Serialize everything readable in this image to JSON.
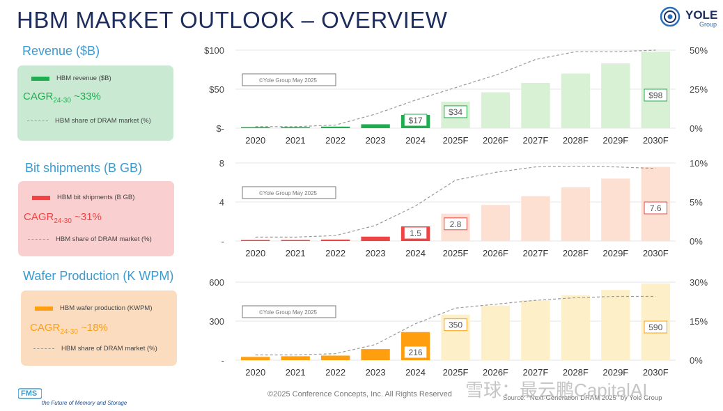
{
  "header": {
    "title": "HBM MARKET OUTLOOK – OVERVIEW",
    "logo_text": "YOLE",
    "logo_sub": "Group"
  },
  "colors": {
    "title": "#1c2d5e",
    "section_title": "#3a9bd1",
    "revenue_dark": "#1fae4f",
    "revenue_light": "#d8f0d4",
    "revenue_legend_bg": "#c9e9d2",
    "bits_dark": "#ef4444",
    "bits_light": "#fde0d2",
    "bits_legend_bg": "#f9cfcf",
    "wafer_dark": "#ff9f0f",
    "wafer_light": "#fdf0c8",
    "wafer_legend_bg": "#fbdcbe",
    "share_line": "#999999"
  },
  "sections": {
    "revenue": {
      "title": "Revenue ($B)",
      "legend_bar": "HBM revenue ($B)",
      "cagr_prefix": "CAGR",
      "cagr_sub": "24-30",
      "cagr_value": "~33%",
      "legend_line": "HBM share of DRAM market (%)"
    },
    "bits": {
      "title": "Bit shipments (B GB)",
      "legend_bar": "HBM bit shipments (B GB)",
      "cagr_prefix": "CAGR",
      "cagr_sub": "24-30",
      "cagr_value": "~31%",
      "legend_line": "HBM share of DRAM market (%)"
    },
    "wafer": {
      "title": "Wafer Production (K WPM)",
      "legend_bar": "HBM wafer production (KWPM)",
      "cagr_prefix": "CAGR",
      "cagr_sub": "24-30",
      "cagr_value": "~18%",
      "legend_line": "HBM share of DRAM market (%)"
    }
  },
  "chart_data": [
    {
      "type": "bar",
      "id": "revenue",
      "categories": [
        "2020",
        "2021",
        "2022",
        "2023",
        "2024",
        "2025F",
        "2026F",
        "2027F",
        "2028F",
        "2029F",
        "2030F"
      ],
      "series": [
        {
          "name": "HBM revenue ($B)",
          "values": [
            1,
            1.3,
            2,
            5,
            17,
            34,
            46,
            58,
            70,
            83,
            98
          ]
        },
        {
          "name": "HBM share of DRAM market (%)",
          "values": [
            1,
            1,
            2,
            9,
            18,
            26,
            34,
            44,
            49,
            49,
            50
          ]
        }
      ],
      "data_labels": {
        "4": "$17",
        "5": "$34",
        "10": "$98"
      },
      "watermark": "©Yole Group May 2025",
      "ylim": [
        0,
        100
      ],
      "y_ticks": [
        "$100",
        "$50",
        "$-"
      ],
      "y2lim": [
        0,
        50
      ],
      "y2_ticks": [
        "50%",
        "25%",
        "0%"
      ],
      "forecast_start_index": 5
    },
    {
      "type": "bar",
      "id": "bits",
      "categories": [
        "2020",
        "2021",
        "2022",
        "2023",
        "2024",
        "2025F",
        "2026F",
        "2027F",
        "2028F",
        "2029F",
        "2030F"
      ],
      "series": [
        {
          "name": "HBM bit shipments (B GB)",
          "values": [
            0.05,
            0.1,
            0.15,
            0.45,
            1.5,
            2.8,
            3.7,
            4.6,
            5.5,
            6.4,
            7.6
          ]
        },
        {
          "name": "HBM share of DRAM market (%)",
          "values": [
            0.5,
            0.5,
            0.7,
            2,
            4.5,
            7.8,
            8.8,
            9.5,
            9.6,
            9.5,
            9.3
          ]
        }
      ],
      "data_labels": {
        "4": "1.5",
        "5": "2.8",
        "10": "7.6"
      },
      "watermark": "©Yole Group May 2025",
      "ylim": [
        0,
        8
      ],
      "y_ticks": [
        "8",
        "4",
        "-"
      ],
      "y2lim": [
        0,
        10
      ],
      "y2_ticks": [
        "10%",
        "5%",
        "0%"
      ],
      "forecast_start_index": 5
    },
    {
      "type": "bar",
      "id": "wafer",
      "categories": [
        "2020",
        "2021",
        "2022",
        "2023",
        "2024",
        "2025F",
        "2026F",
        "2027F",
        "2028F",
        "2029F",
        "2030F"
      ],
      "series": [
        {
          "name": "HBM wafer production (KWPM)",
          "values": [
            25,
            30,
            35,
            85,
            216,
            350,
            420,
            460,
            500,
            540,
            590
          ]
        },
        {
          "name": "HBM share of DRAM market (%)",
          "values": [
            2,
            2,
            2.5,
            6,
            14,
            20,
            21.5,
            23,
            24,
            24.5,
            24.5
          ]
        }
      ],
      "data_labels": {
        "4": "216",
        "5": "350",
        "10": "590"
      },
      "watermark": "©Yole Group May 2025",
      "ylim": [
        0,
        600
      ],
      "y_ticks": [
        "600",
        "300",
        "-"
      ],
      "y2lim": [
        0,
        30
      ],
      "y2_ticks": [
        "30%",
        "15%",
        "0%"
      ],
      "forecast_start_index": 5
    }
  ],
  "footer": {
    "copyright": "©2025 Conference Concepts, Inc. All Rights Reserved",
    "source": "Source: \"Next-Generation DRAM 2025\" by Yole Group",
    "watermark": "雪球：最云鹏CapitalAI",
    "fms_logo": "FMS",
    "fms_tagline": "the Future of Memory and Storage"
  }
}
